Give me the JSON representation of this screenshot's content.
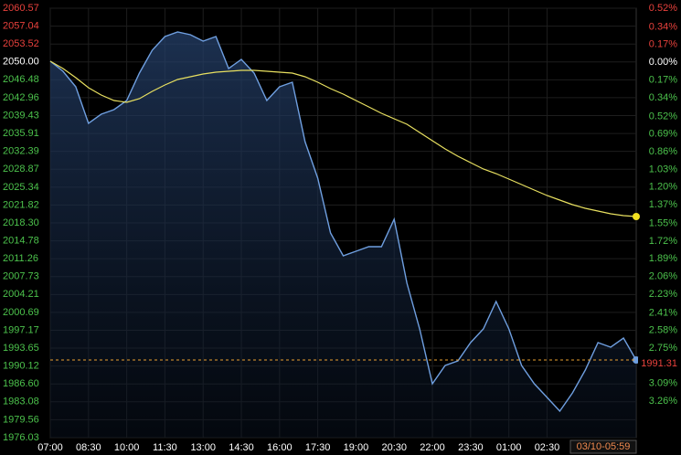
{
  "chart_data": {
    "type": "line",
    "x": [
      0,
      0.5,
      1,
      1.5,
      2,
      2.5,
      3,
      3.5,
      4,
      4.5,
      5,
      5.5,
      6,
      6.5,
      7,
      7.5,
      8,
      8.5,
      9,
      9.5,
      10,
      10.5,
      11,
      11.5,
      12,
      12.5,
      13,
      13.5,
      14,
      14.5,
      15,
      15.5,
      16,
      16.5,
      17,
      17.5,
      18,
      18.5,
      19,
      19.5,
      20,
      20.5,
      21,
      21.5,
      22,
      22.5,
      23
    ],
    "series": [
      {
        "color": "#6f9fe0",
        "values": [
          2050.14,
          2048.16,
          2045.1,
          2037.91,
          2039.71,
          2040.6,
          2042.4,
          2047.8,
          2052.3,
          2054.99,
          2055.89,
          2055.35,
          2054.09,
          2054.99,
          2048.7,
          2050.5,
          2047.8,
          2042.4,
          2045.1,
          2046.0,
          2034.31,
          2027.11,
          2016.32,
          2011.83,
          2012.72,
          2013.62,
          2013.62,
          2019.02,
          2006.43,
          1997.44,
          1986.64,
          1990.24,
          1991.14,
          1994.74,
          1997.44,
          2002.83,
          1997.44,
          1990.24,
          1986.64,
          1983.95,
          1981.25,
          1984.84,
          1989.34,
          1994.74,
          1993.84,
          1995.64,
          1991.31
        ]
      },
      {
        "color": "#e8e060",
        "values": [
          2050.14,
          2048.7,
          2046.9,
          2044.92,
          2043.48,
          2042.4,
          2042.04,
          2042.76,
          2044.2,
          2045.46,
          2046.54,
          2047.08,
          2047.62,
          2047.98,
          2048.16,
          2048.34,
          2048.34,
          2048.16,
          2047.98,
          2047.8,
          2047.08,
          2046.0,
          2044.74,
          2043.66,
          2042.4,
          2041.14,
          2039.88,
          2038.81,
          2037.73,
          2036.11,
          2034.49,
          2032.87,
          2031.43,
          2030.17,
          2028.91,
          2028.01,
          2026.93,
          2025.86,
          2024.78,
          2023.7,
          2022.8,
          2021.9,
          2021.18,
          2020.64,
          2020.1,
          2019.74,
          2019.56
        ]
      }
    ],
    "xlim": [
      0,
      23
    ],
    "xticks": [
      {
        "value": 0,
        "label": "07:00"
      },
      {
        "value": 1.5,
        "label": "08:30"
      },
      {
        "value": 3,
        "label": "10:00"
      },
      {
        "value": 4.5,
        "label": "11:30"
      },
      {
        "value": 6,
        "label": "13:00"
      },
      {
        "value": 7.5,
        "label": "14:30"
      },
      {
        "value": 9,
        "label": "16:00"
      },
      {
        "value": 10.5,
        "label": "17:30"
      },
      {
        "value": 12,
        "label": "19:00"
      },
      {
        "value": 13.5,
        "label": "20:30"
      },
      {
        "value": 15,
        "label": "22:00"
      },
      {
        "value": 16.5,
        "label": "23:30"
      },
      {
        "value": 18,
        "label": "01:00"
      },
      {
        "value": 19.5,
        "label": "02:30"
      }
    ],
    "ylim": [
      1976.03,
      2060.57
    ],
    "yticks": [
      2060.57,
      2057.04,
      2053.52,
      {
        "value": 2050,
        "label": "2050.00"
      },
      2046.48,
      2042.96,
      2039.43,
      2035.91,
      2032.39,
      2028.87,
      2025.34,
      2021.82,
      {
        "value": 2018.3,
        "label": "2018.30"
      },
      2014.78,
      2011.26,
      2007.73,
      2004.21,
      2000.69,
      1997.17,
      1993.65,
      1990.12,
      {
        "value": 1986.6,
        "label": "1986.60"
      },
      1983.08,
      1979.56,
      1976.03
    ],
    "base": 2050,
    "y2lim": [
      0.52,
      -3.61
    ],
    "y2ticks": [
      {
        "value": 0.52,
        "label": "0.52%"
      },
      {
        "value": 0.34,
        "label": "0.34%"
      },
      {
        "value": 0.17,
        "label": "0.17%"
      },
      {
        "value": 0,
        "label": "0.00%"
      },
      {
        "value": -0.17,
        "label": "0.17%"
      },
      {
        "value": -0.34,
        "label": "0.34%"
      },
      {
        "value": -0.52,
        "label": "0.52%"
      },
      {
        "value": -0.69,
        "label": "0.69%"
      },
      {
        "value": -0.86,
        "label": "0.86%"
      },
      {
        "value": -1.03,
        "label": "1.03%"
      },
      {
        "value": -1.2,
        "label": "1.20%"
      },
      {
        "value": -1.37,
        "label": "1.37%"
      },
      {
        "value": -1.55,
        "label": "1.55%"
      },
      {
        "value": -1.72,
        "label": "1.72%"
      },
      {
        "value": -1.89,
        "label": "1.89%"
      },
      {
        "value": -2.06,
        "label": "2.06%"
      },
      {
        "value": -2.23,
        "label": "2.23%"
      },
      {
        "value": -2.41,
        "label": "2.41%"
      },
      {
        "value": -2.58,
        "label": "2.58%"
      },
      {
        "value": -2.75,
        "label": "2.75%"
      },
      {
        "value": -3.09,
        "label": "3.09%"
      },
      {
        "value": -3.26,
        "label": "3.26%"
      }
    ],
    "last_price": 1991.31,
    "last_time": "03/10-05:59",
    "up_color": "#e8413c",
    "down_color": "#4cc24c",
    "flat_color": "#ffffff",
    "grid": true
  }
}
